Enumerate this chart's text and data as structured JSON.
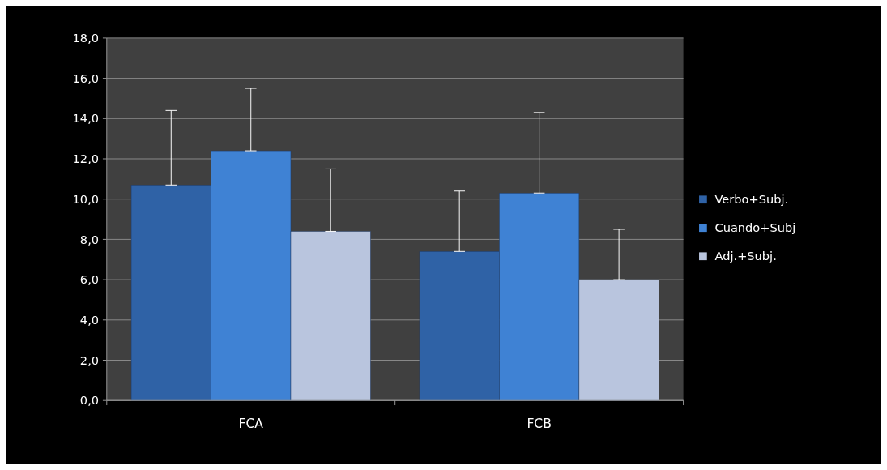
{
  "chart_data": {
    "type": "bar",
    "categories": [
      "FCA",
      "FCB"
    ],
    "series": [
      {
        "name": "Verbo+Subj.",
        "color": "#2f62a6",
        "values": [
          10.7,
          7.4
        ],
        "errors": [
          [
            10.7,
            14.4
          ],
          [
            7.4,
            10.4
          ]
        ]
      },
      {
        "name": "Cuando+Subj",
        "color": "#3f82d4",
        "values": [
          12.4,
          10.3
        ],
        "errors": [
          [
            12.4,
            15.5
          ],
          [
            10.3,
            14.3
          ]
        ]
      },
      {
        "name": "Adj.+Subj.",
        "color": "#b9c5de",
        "values": [
          8.4,
          6.0
        ],
        "errors": [
          [
            8.4,
            11.5
          ],
          [
            6.0,
            8.5
          ]
        ]
      }
    ],
    "ylim": [
      0,
      18
    ],
    "yticks": [
      {
        "value": 0,
        "label": "0,0"
      },
      {
        "value": 2,
        "label": "2,0"
      },
      {
        "value": 4,
        "label": "4,0"
      },
      {
        "value": 6,
        "label": "6,0"
      },
      {
        "value": 8,
        "label": "8,0"
      },
      {
        "value": 10,
        "label": "10,0"
      },
      {
        "value": 12,
        "label": "12,0"
      },
      {
        "value": 14,
        "label": "14,0"
      },
      {
        "value": 16,
        "label": "16,0"
      },
      {
        "value": 18,
        "label": "18,0"
      }
    ],
    "grid": "y",
    "legend": "right"
  }
}
